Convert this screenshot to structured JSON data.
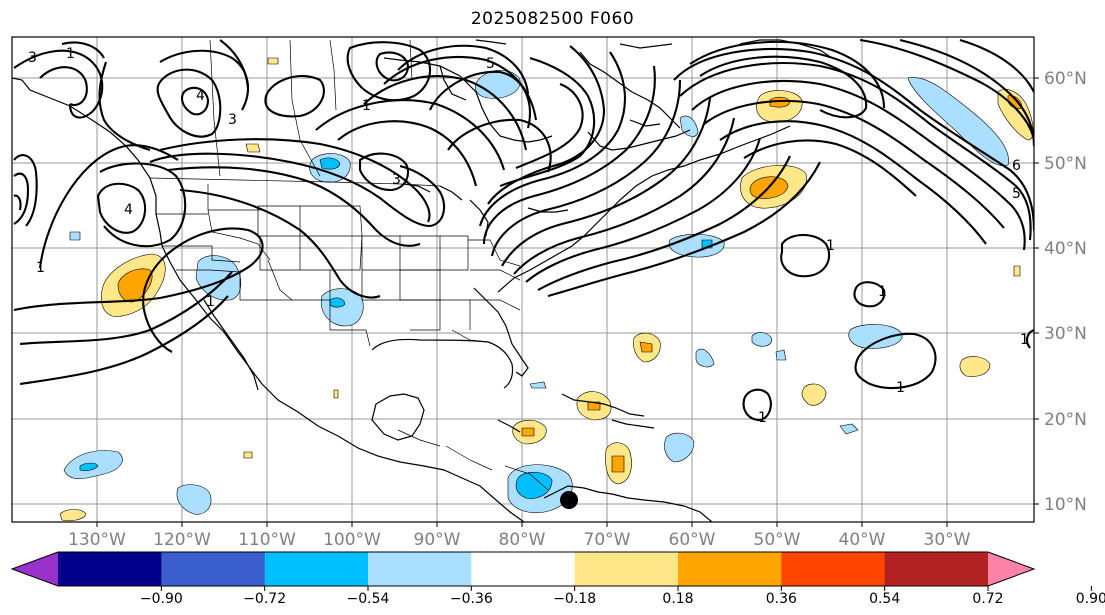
{
  "title": "2025082500 F060",
  "longitude_labels": [
    "130°W",
    "120°W",
    "110°W",
    "100°W",
    "90°W",
    "80°W",
    "70°W",
    "60°W",
    "50°W",
    "40°W",
    "30°W"
  ],
  "latitude_labels": [
    "60°N",
    "50°N",
    "40°N",
    "30°N",
    "20°N",
    "10°N"
  ],
  "colorbar": {
    "colors": [
      "#9932cc",
      "#00008b",
      "#3a5fcd",
      "#00bfff",
      "#aadfff",
      "#ffffff",
      "#ffe78a",
      "#ffa500",
      "#ff4500",
      "#b22222",
      "#ff82ab"
    ],
    "tick_labels": [
      "−0.90",
      "−0.72",
      "−0.54",
      "−0.36",
      "−0.18",
      "0.18",
      "0.36",
      "0.54",
      "0.72",
      "0.90"
    ]
  },
  "contour_labels": [
    "3",
    "1",
    "5",
    "4",
    "4",
    "3",
    "1",
    "3",
    "1",
    "1",
    "1",
    "1",
    "1",
    "1",
    "1",
    "6",
    "5"
  ]
}
